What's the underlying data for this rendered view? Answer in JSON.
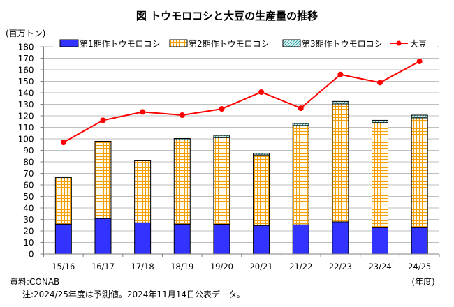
{
  "chart_data": {
    "type": "bar",
    "subtype": "stacked-bar-with-line",
    "title": "図 トウモロコシと大豆の生産量の推移",
    "ylabel": "(百万トン)",
    "xlabel": "(年度)",
    "ylim": [
      0,
      180
    ],
    "yticks": [
      "0",
      "10",
      "20",
      "30",
      "40",
      "50",
      "60",
      "70",
      "80",
      "90",
      "100",
      "110",
      "120",
      "130",
      "140",
      "150",
      "160",
      "170",
      "180"
    ],
    "grid": true,
    "legend_position": "top",
    "categories": [
      "15/16",
      "16/17",
      "17/18",
      "18/19",
      "19/20",
      "20/21",
      "21/22",
      "22/23",
      "23/24",
      "24/25"
    ],
    "series": [
      {
        "name": "第1期作トウモロコシ",
        "type": "bar",
        "color": "#3333FF",
        "values": [
          25.9,
          30.8,
          27.1,
          25.9,
          25.8,
          24.7,
          25.3,
          27.9,
          22.9,
          22.9
        ]
      },
      {
        "name": "第2期作トウモロコシ",
        "type": "bar",
        "color": "#F5A000",
        "values": [
          40.4,
          67.1,
          53.8,
          73.4,
          75.3,
          61.3,
          86.3,
          102.4,
          91.2,
          95.4
        ]
      },
      {
        "name": "第3期作トウモロコシ",
        "type": "bar",
        "color": "#2AA5A5",
        "values": [
          0,
          0,
          0,
          1.0,
          1.9,
          1.4,
          1.7,
          2.2,
          2.0,
          2.3
        ]
      },
      {
        "name": "大豆",
        "type": "line",
        "color": "#FF0000",
        "values": [
          96.9,
          116.1,
          123.4,
          120.6,
          126.0,
          140.6,
          126.6,
          155.9,
          148.9,
          167.3
        ]
      }
    ],
    "source": "資料:CONAB",
    "note": "注:2024/25年度は予測値。2024年11月14日公表データ。"
  }
}
